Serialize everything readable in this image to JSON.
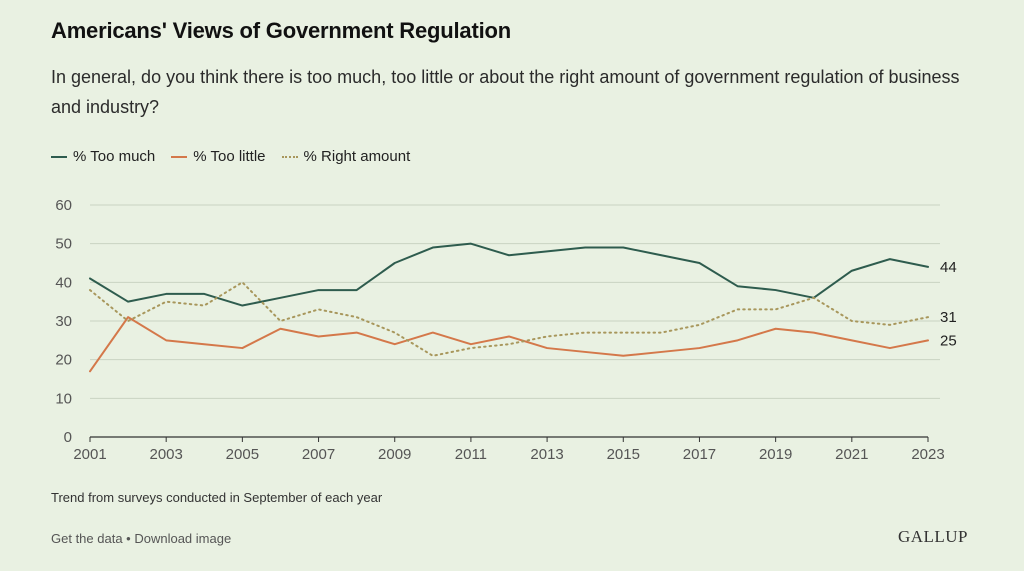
{
  "title": "Americans' Views of Government Regulation",
  "subtitle": "In general, do you think there is too much, too little or about the right amount of government regulation of business and industry?",
  "note": "Trend from surveys conducted in September of each year",
  "footer": {
    "get_data": "Get the data",
    "separator": " • ",
    "download": "Download image"
  },
  "brand": "GALLUP",
  "colors": {
    "too_much": "#2e5c4e",
    "too_little": "#d4784a",
    "right_amount": "#a8975c",
    "axis": "#555555",
    "grid": "#c9d3c2"
  },
  "chart_data": {
    "type": "line",
    "x": [
      2001,
      2002,
      2003,
      2004,
      2005,
      2006,
      2007,
      2008,
      2009,
      2010,
      2011,
      2012,
      2013,
      2014,
      2015,
      2016,
      2017,
      2018,
      2019,
      2020,
      2021,
      2022,
      2023
    ],
    "xticks": [
      "2001",
      "2003",
      "2005",
      "2007",
      "2009",
      "2011",
      "2013",
      "2015",
      "2017",
      "2019",
      "2021",
      "2023"
    ],
    "yticks": [
      "0",
      "10",
      "20",
      "30",
      "40",
      "50",
      "60"
    ],
    "ylim": [
      0,
      60
    ],
    "legend_position": "top-left",
    "series": [
      {
        "key": "too_much",
        "name": "% Too much",
        "style": "solid",
        "end_label": "44",
        "values": [
          41,
          35,
          37,
          37,
          34,
          36,
          38,
          38,
          45,
          49,
          50,
          47,
          48,
          49,
          49,
          47,
          45,
          39,
          38,
          36,
          43,
          46,
          44
        ]
      },
      {
        "key": "too_little",
        "name": "% Too little",
        "style": "solid",
        "end_label": "25",
        "values": [
          17,
          31,
          25,
          24,
          23,
          28,
          26,
          27,
          24,
          27,
          24,
          26,
          23,
          22,
          21,
          22,
          23,
          25,
          28,
          27,
          25,
          23,
          25
        ]
      },
      {
        "key": "right_amount",
        "name": "% Right amount",
        "style": "dotted",
        "end_label": "31",
        "values": [
          38,
          30,
          35,
          34,
          40,
          30,
          33,
          31,
          27,
          21,
          23,
          24,
          26,
          27,
          27,
          27,
          29,
          33,
          33,
          36,
          30,
          29,
          31
        ]
      }
    ]
  }
}
